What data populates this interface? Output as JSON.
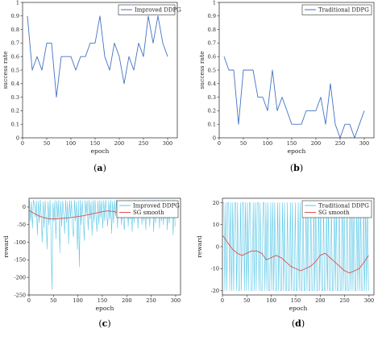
{
  "chart_data": [
    {
      "type": "line",
      "panel_label": "(a)",
      "xlabel": "epoch",
      "ylabel": "success rate",
      "xlim": [
        0,
        320
      ],
      "ylim": [
        0,
        1.0
      ],
      "xticks": [
        0,
        50,
        100,
        150,
        200,
        250,
        300
      ],
      "yticks": [
        0,
        0.1,
        0.2,
        0.3,
        0.4,
        0.5,
        0.6,
        0.7,
        0.8,
        0.9,
        1.0
      ],
      "grid": false,
      "legend_position": "top-right",
      "series": [
        {
          "name": "Improved DDPG",
          "color": "#4472c4",
          "x": [
            10,
            20,
            30,
            40,
            50,
            60,
            70,
            80,
            90,
            100,
            110,
            120,
            130,
            140,
            150,
            160,
            170,
            180,
            190,
            200,
            210,
            220,
            230,
            240,
            250,
            260,
            270,
            280,
            290,
            300
          ],
          "y": [
            0.9,
            0.5,
            0.6,
            0.5,
            0.7,
            0.7,
            0.3,
            0.6,
            0.6,
            0.6,
            0.5,
            0.6,
            0.6,
            0.7,
            0.7,
            0.9,
            0.6,
            0.5,
            0.7,
            0.6,
            0.4,
            0.6,
            0.5,
            0.7,
            0.6,
            0.9,
            0.7,
            0.9,
            0.7,
            0.6
          ]
        }
      ]
    },
    {
      "type": "line",
      "panel_label": "(b)",
      "xlabel": "epoch",
      "ylabel": "success rate",
      "xlim": [
        0,
        320
      ],
      "ylim": [
        0,
        1.0
      ],
      "xticks": [
        0,
        50,
        100,
        150,
        200,
        250,
        300
      ],
      "yticks": [
        0,
        0.1,
        0.2,
        0.3,
        0.4,
        0.5,
        0.6,
        0.7,
        0.8,
        0.9,
        1.0
      ],
      "grid": false,
      "legend_position": "top-right",
      "series": [
        {
          "name": "Traditional DDPG",
          "color": "#4472c4",
          "x": [
            10,
            20,
            30,
            40,
            50,
            60,
            70,
            80,
            90,
            100,
            110,
            120,
            130,
            140,
            150,
            160,
            170,
            180,
            190,
            200,
            210,
            220,
            230,
            240,
            250,
            260,
            270,
            280,
            290,
            300
          ],
          "y": [
            0.6,
            0.5,
            0.5,
            0.1,
            0.5,
            0.5,
            0.5,
            0.3,
            0.3,
            0.2,
            0.5,
            0.2,
            0.3,
            0.2,
            0.1,
            0.1,
            0.1,
            0.2,
            0.2,
            0.2,
            0.3,
            0.1,
            0.4,
            0.1,
            0.0,
            0.1,
            0.1,
            0.0,
            0.1,
            0.2
          ]
        }
      ]
    },
    {
      "type": "line",
      "panel_label": "(c)",
      "xlabel": "epoch",
      "ylabel": "reward",
      "xlim": [
        0,
        310
      ],
      "ylim": [
        -250,
        25
      ],
      "xticks": [
        0,
        50,
        100,
        150,
        200,
        250,
        300
      ],
      "yticks": [
        -250,
        -200,
        -150,
        -100,
        -50,
        0
      ],
      "grid": false,
      "legend_position": "top-right",
      "series": [
        {
          "name": "Improved DDPG",
          "color": "#5bc8e8",
          "x": [
            1,
            3,
            5,
            7,
            9,
            11,
            13,
            15,
            17,
            19,
            21,
            23,
            25,
            27,
            29,
            31,
            33,
            35,
            37,
            39,
            41,
            43,
            45,
            47,
            49,
            51,
            53,
            55,
            57,
            59,
            61,
            63,
            65,
            67,
            69,
            71,
            73,
            75,
            77,
            79,
            81,
            83,
            85,
            87,
            89,
            91,
            93,
            95,
            97,
            99,
            101,
            103,
            105,
            107,
            109,
            111,
            113,
            115,
            117,
            119,
            121,
            123,
            125,
            127,
            129,
            131,
            133,
            135,
            137,
            139,
            141,
            143,
            145,
            147,
            149,
            151,
            153,
            155,
            157,
            159,
            161,
            163,
            165,
            167,
            169,
            171,
            173,
            175,
            177,
            179,
            181,
            183,
            185,
            187,
            189,
            191,
            193,
            195,
            197,
            199,
            201,
            203,
            205,
            207,
            209,
            211,
            213,
            215,
            217,
            219,
            221,
            223,
            225,
            227,
            229,
            231,
            233,
            235,
            237,
            239,
            241,
            243,
            245,
            247,
            249,
            251,
            253,
            255,
            257,
            259,
            261,
            263,
            265,
            267,
            269,
            271,
            273,
            275,
            277,
            279,
            281,
            283,
            285,
            287,
            289,
            291,
            293,
            295,
            297,
            299
          ],
          "y": [
            18,
            -40,
            15,
            -60,
            20,
            10,
            -30,
            18,
            -80,
            17,
            -45,
            20,
            -25,
            -100,
            15,
            -60,
            18,
            -30,
            -120,
            16,
            -50,
            20,
            -70,
            -235,
            12,
            -40,
            19,
            -90,
            17,
            -35,
            20,
            -130,
            15,
            -55,
            18,
            -20,
            -75,
            20,
            -45,
            16,
            -105,
            19,
            -30,
            18,
            -60,
            -85,
            20,
            -40,
            15,
            -120,
            18,
            -170,
            20,
            -50,
            17,
            -30,
            -95,
            19,
            -20,
            18,
            -65,
            20,
            -35,
            16,
            -80,
            19,
            -45,
            20,
            -25,
            -70,
            18,
            -50,
            20,
            -30,
            17,
            -60,
            19,
            -40,
            20,
            -20,
            -55,
            18,
            -35,
            20,
            -75,
            16,
            -45,
            19,
            -25,
            20,
            -60,
            17,
            -30,
            18,
            -50,
            20,
            -40,
            -65,
            19,
            -20,
            18,
            -55,
            20,
            -35,
            16,
            -70,
            19,
            -45,
            20,
            -25,
            18,
            -60,
            20,
            -30,
            17,
            -50,
            19,
            -40,
            20,
            -65,
            18,
            -35,
            20,
            -55,
            16,
            -25,
            19,
            -70,
            20,
            -45,
            18,
            -30,
            20,
            -60,
            17,
            -40,
            19,
            -50,
            20,
            -35,
            18,
            -65,
            20,
            -45,
            16,
            -30,
            19,
            -80,
            20,
            -55
          ]
        },
        {
          "name": "SG smooth",
          "color": "#d9534f",
          "x": [
            1,
            10,
            20,
            30,
            40,
            50,
            60,
            70,
            80,
            90,
            100,
            110,
            120,
            130,
            140,
            150,
            160,
            170,
            180,
            190,
            200,
            210,
            220,
            230,
            240,
            250,
            260,
            270,
            280,
            290,
            299
          ],
          "y": [
            -10,
            -18,
            -25,
            -30,
            -33,
            -34,
            -33,
            -32,
            -31,
            -29,
            -27,
            -25,
            -22,
            -19,
            -16,
            -13,
            -11,
            -12,
            -15,
            -18,
            -19,
            -20,
            -22,
            -24,
            -25,
            -24,
            -22,
            -19,
            -17,
            -16,
            -16
          ]
        }
      ]
    },
    {
      "type": "line",
      "panel_label": "(d)",
      "xlabel": "epoch",
      "ylabel": "reward",
      "xlim": [
        0,
        310
      ],
      "ylim": [
        -22,
        22
      ],
      "xticks": [
        0,
        50,
        100,
        150,
        200,
        250,
        300
      ],
      "yticks": [
        -20,
        -10,
        0,
        10,
        20
      ],
      "grid": false,
      "legend_position": "top-right",
      "series": [
        {
          "name": "Traditional DDPG",
          "color": "#5bc8e8",
          "x": [
            1,
            3,
            5,
            7,
            9,
            11,
            13,
            15,
            17,
            19,
            21,
            23,
            25,
            27,
            29,
            31,
            33,
            35,
            37,
            39,
            41,
            43,
            45,
            47,
            49,
            51,
            53,
            55,
            57,
            59,
            61,
            63,
            65,
            67,
            69,
            71,
            73,
            75,
            77,
            79,
            81,
            83,
            85,
            87,
            89,
            91,
            93,
            95,
            97,
            99,
            101,
            103,
            105,
            107,
            109,
            111,
            113,
            115,
            117,
            119,
            121,
            123,
            125,
            127,
            129,
            131,
            133,
            135,
            137,
            139,
            141,
            143,
            145,
            147,
            149,
            151,
            153,
            155,
            157,
            159,
            161,
            163,
            165,
            167,
            169,
            171,
            173,
            175,
            177,
            179,
            181,
            183,
            185,
            187,
            189,
            191,
            193,
            195,
            197,
            199,
            201,
            203,
            205,
            207,
            209,
            211,
            213,
            215,
            217,
            219,
            221,
            223,
            225,
            227,
            229,
            231,
            233,
            235,
            237,
            239,
            241,
            243,
            245,
            247,
            249,
            251,
            253,
            255,
            257,
            259,
            261,
            263,
            265,
            267,
            269,
            271,
            273,
            275,
            277,
            279,
            281,
            283,
            285,
            287,
            289,
            291,
            293,
            295,
            297,
            299
          ],
          "y": [
            20,
            20,
            -20,
            20,
            -20,
            20,
            20,
            -20,
            20,
            -20,
            20,
            -20,
            20,
            20,
            -20,
            20,
            -20,
            -20,
            20,
            -20,
            20,
            20,
            -20,
            20,
            -20,
            20,
            -20,
            20,
            20,
            -20,
            -20,
            20,
            -20,
            20,
            -20,
            20,
            20,
            -20,
            20,
            -20,
            -20,
            20,
            20,
            -20,
            20,
            -20,
            20,
            -20,
            -20,
            20,
            -20,
            20,
            -20,
            20,
            -20,
            -20,
            20,
            -20,
            20,
            -20,
            -20,
            20,
            -20,
            20,
            -20,
            -20,
            20,
            -20,
            -20,
            20,
            -20,
            20,
            -20,
            -20,
            20,
            -20,
            -20,
            20,
            -20,
            20,
            -20,
            -20,
            20,
            -20,
            -20,
            20,
            -20,
            20,
            -20,
            -20,
            20,
            -20,
            -20,
            20,
            -20,
            20,
            -20,
            -20,
            20,
            -20,
            20,
            -20,
            -20,
            20,
            -20,
            -20,
            20,
            -20,
            20,
            -20,
            -20,
            20,
            -20,
            -20,
            20,
            -20,
            20,
            -20,
            -20,
            20,
            -20,
            -20,
            20,
            -20,
            20,
            -20,
            -20,
            20,
            -20,
            -20,
            20,
            -20,
            20,
            -20,
            20,
            -20,
            -20,
            20,
            -20,
            20,
            -20,
            20,
            -20,
            -20,
            20,
            -20,
            20,
            -20,
            20,
            -20
          ]
        },
        {
          "name": "SG smooth",
          "color": "#d9534f",
          "x": [
            1,
            10,
            20,
            30,
            40,
            50,
            60,
            70,
            80,
            90,
            100,
            110,
            120,
            130,
            140,
            150,
            160,
            170,
            180,
            190,
            200,
            210,
            220,
            230,
            240,
            250,
            260,
            270,
            280,
            290,
            299
          ],
          "y": [
            5,
            2,
            -1,
            -3,
            -4,
            -3,
            -2,
            -2,
            -3,
            -6,
            -5,
            -4,
            -5,
            -7,
            -9,
            -10,
            -11,
            -10,
            -9,
            -7,
            -4,
            -3,
            -5,
            -7,
            -9,
            -11,
            -12,
            -11,
            -10,
            -7,
            -4
          ]
        }
      ]
    }
  ]
}
